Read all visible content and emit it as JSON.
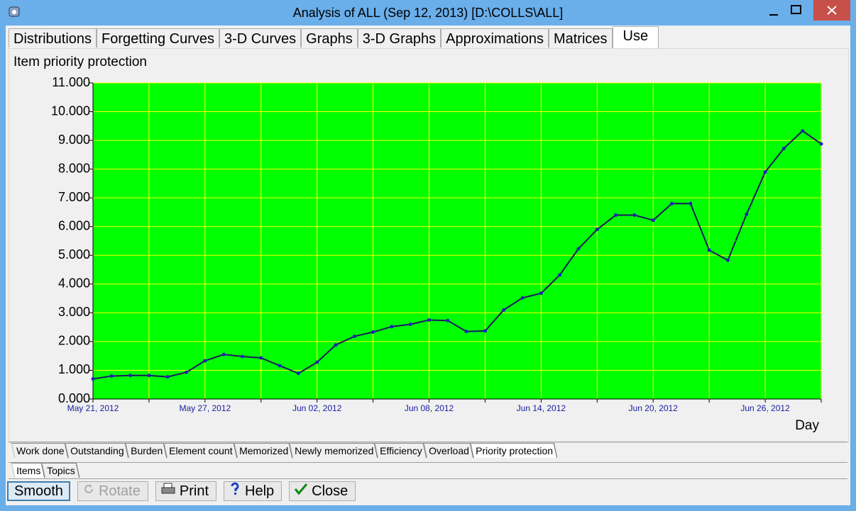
{
  "window": {
    "title": "Analysis of ALL (Sep 12, 2013) [D:\\COLLS\\ALL]"
  },
  "tabs": [
    "Distributions",
    "Forgetting Curves",
    "3-D Curves",
    "Graphs",
    "3-D Graphs",
    "Approximations",
    "Matrices",
    "Use"
  ],
  "chart_data": {
    "type": "line",
    "title": "Item priority protection",
    "x_label": "Day",
    "categories": [
      "May 21, 2012",
      null,
      null,
      null,
      null,
      null,
      "May 27, 2012",
      null,
      null,
      null,
      null,
      null,
      "Jun 02, 2012",
      null,
      null,
      null,
      null,
      null,
      "Jun 08, 2012",
      null,
      null,
      null,
      null,
      null,
      "Jun 14, 2012",
      null,
      null,
      null,
      null,
      null,
      "Jun 20, 2012",
      null,
      null,
      null,
      null,
      null,
      "Jun 26, 2012",
      null,
      null,
      null
    ],
    "series": [
      {
        "color": "#1a1a5e",
        "values": [
          0.7,
          0.8,
          0.82,
          0.82,
          0.77,
          0.93,
          1.33,
          1.55,
          1.48,
          1.43,
          1.16,
          0.89,
          1.28,
          1.88,
          2.18,
          2.33,
          2.52,
          2.6,
          2.75,
          2.73,
          2.35,
          2.37,
          3.1,
          3.52,
          3.68,
          4.32,
          5.23,
          5.9,
          6.4,
          6.4,
          6.22,
          6.8,
          6.8,
          5.18,
          4.83,
          6.43,
          7.9,
          8.72,
          9.33,
          8.88
        ]
      }
    ],
    "ylim": [
      0,
      11
    ],
    "yticks": [
      {
        "value": 0,
        "label": "0.000"
      },
      {
        "value": 1,
        "label": "1.000"
      },
      {
        "value": 2,
        "label": "2.000"
      },
      {
        "value": 3,
        "label": "3.000"
      },
      {
        "value": 4,
        "label": "4.000"
      },
      {
        "value": 5,
        "label": "5.000"
      },
      {
        "value": 6,
        "label": "6.000"
      },
      {
        "value": 7,
        "label": "7.000"
      },
      {
        "value": 8,
        "label": "8.000"
      },
      {
        "value": 9,
        "label": "9.000"
      },
      {
        "value": 10,
        "label": "10.000"
      },
      {
        "value": 11,
        "label": "11.000"
      }
    ],
    "grid": true,
    "plot_background": "#00ff00",
    "grid_color": "#ffff00"
  },
  "chart_tabs": [
    "Work done",
    "Outstanding",
    "Burden",
    "Element count",
    "Memorized",
    "Newly memorized",
    "Efficiency",
    "Overload",
    "Priority protection"
  ],
  "item_tabs": [
    "Items",
    "Topics"
  ],
  "buttons": [
    "Smooth",
    "Rotate",
    "Print",
    "Help",
    "Close"
  ]
}
